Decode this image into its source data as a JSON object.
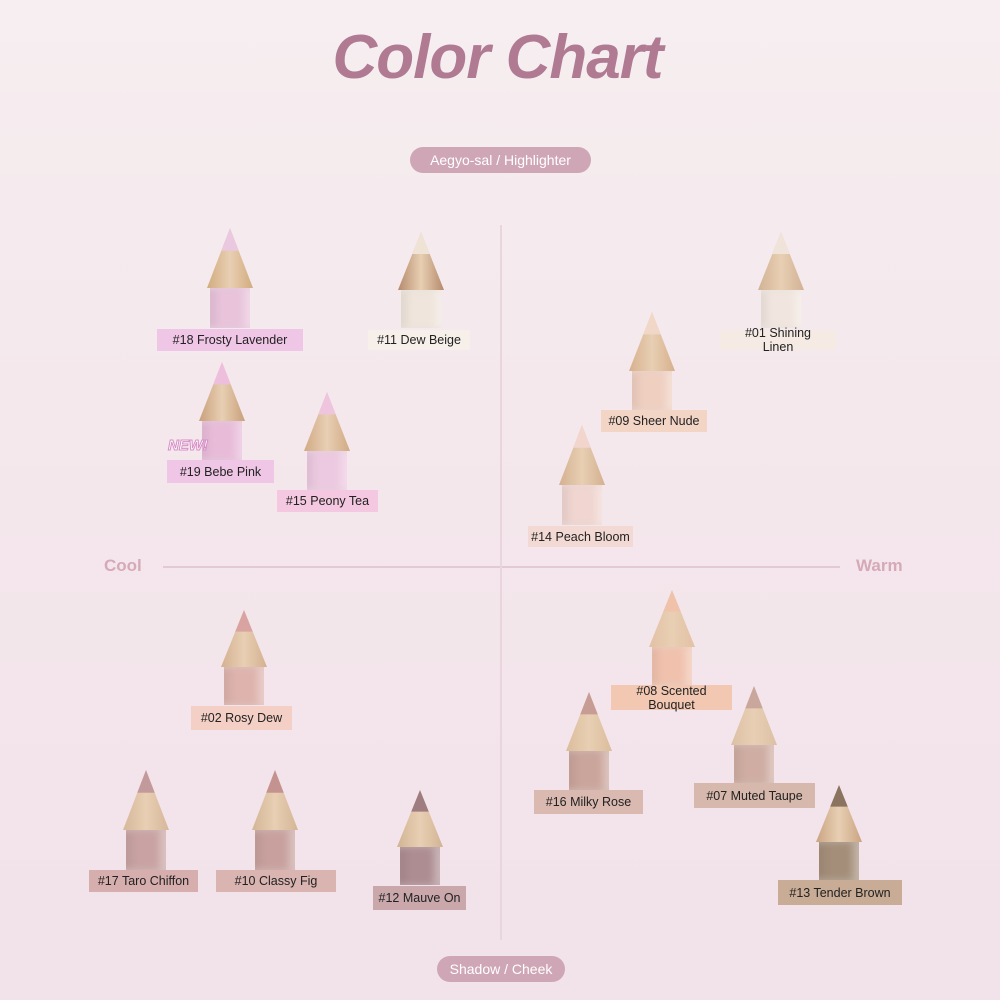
{
  "title": "Color Chart",
  "top_axis": "Aegyo-sal / Highlighter",
  "bottom_axis": "Shadow / Cheek",
  "left_axis": "Cool",
  "right_axis": "Warm",
  "new_badge": "NEW!",
  "colors": {
    "title": "#b07a93",
    "pill": "#cfa6b5",
    "axis_text": "#d6a9b8"
  },
  "shades": [
    {
      "name": "#18 Frosty Lavender",
      "tip": "#eac8df",
      "wood": "#d2ac7e",
      "body": "#e8c3da",
      "label_bg": "#f0c6e6"
    },
    {
      "name": "#11 Dew Beige",
      "tip": "#efe3d5",
      "wood": "#b68a6c",
      "body": "#efe5dc",
      "label_bg": "#f7efe9"
    },
    {
      "name": "#01 Shining Linen",
      "tip": "#f0e3da",
      "wood": "#d2b296",
      "body": "#f1e6df",
      "label_bg": "#f5ebe4"
    },
    {
      "name": "#09 Sheer Nude",
      "tip": "#f1d7c7",
      "wood": "#d7b08d",
      "body": "#efcfc0",
      "label_bg": "#f3d5c6"
    },
    {
      "name": "#19 Bebe Pink",
      "tip": "#eebfdc",
      "wood": "#c9a07b",
      "body": "#e8bcd9",
      "label_bg": "#f0c6e6",
      "is_new": true
    },
    {
      "name": "#15 Peony Tea",
      "tip": "#efc4df",
      "wood": "#d1aa84",
      "body": "#ecc9e0",
      "label_bg": "#f3c8e0"
    },
    {
      "name": "#14 Peach Bloom",
      "tip": "#f2d5cd",
      "wood": "#d4b090",
      "body": "#f0d5d0",
      "label_bg": "#f2d9d4"
    },
    {
      "name": "#02 Rosy Dew",
      "tip": "#d9a3a1",
      "wood": "#d5b091",
      "body": "#deb3ad",
      "label_bg": "#f4cfc5"
    },
    {
      "name": "#08 Scented Bouquet",
      "tip": "#f1c2aa",
      "wood": "#e3c1a5",
      "body": "#f0c2ae",
      "label_bg": "#f3c8b3"
    },
    {
      "name": "#16 Milky Rose",
      "tip": "#c69c95",
      "wood": "#dbbd9c",
      "body": "#caa59c",
      "label_bg": "#d9b9b0"
    },
    {
      "name": "#07 Muted Taupe",
      "tip": "#c9a79c",
      "wood": "#dcc0a6",
      "body": "#cfada2",
      "label_bg": "#d7b8ac"
    },
    {
      "name": "#17 Taro Chiffon",
      "tip": "#c39a9b",
      "wood": "#d6b79a",
      "body": "#c9a3a3",
      "label_bg": "#d6aead"
    },
    {
      "name": "#10 Classy Fig",
      "tip": "#c5938f",
      "wood": "#d4b596",
      "body": "#c8a19e",
      "label_bg": "#d9b4b1"
    },
    {
      "name": "#12 Mauve On",
      "tip": "#9e7c80",
      "wood": "#d2b494",
      "body": "#ad8d92",
      "label_bg": "#c9a7ab"
    },
    {
      "name": "#13 Tender Brown",
      "tip": "#8a735f",
      "wood": "#c9a482",
      "body": "#a48e79",
      "label_bg": "#c9ac95"
    }
  ]
}
